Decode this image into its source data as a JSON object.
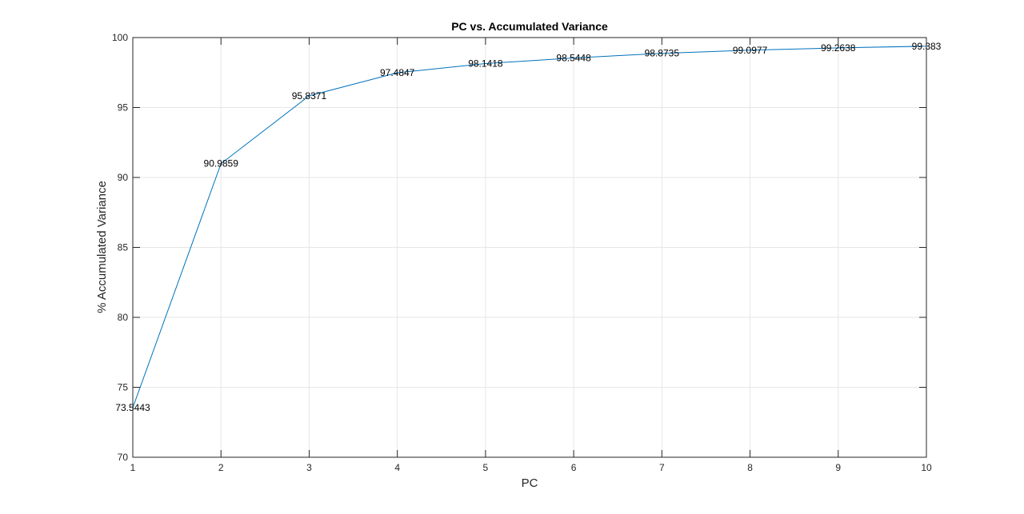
{
  "chart_data": {
    "type": "line",
    "title": "PC vs. Accumulated Variance",
    "xlabel": "PC",
    "ylabel": "% Accumulated Variance",
    "x": [
      1,
      2,
      3,
      4,
      5,
      6,
      7,
      8,
      9,
      10
    ],
    "series": [
      {
        "values": [
          73.5443,
          90.9859,
          95.8371,
          97.4847,
          98.1418,
          98.5448,
          98.8735,
          99.0977,
          99.2638,
          99.383
        ],
        "color": "#0072bd"
      }
    ],
    "data_labels": [
      "73.5443",
      "90.9859",
      "95.8371",
      "97.4847",
      "98.1418",
      "98.5448",
      "98.8735",
      "99.0977",
      "99.2638",
      "99.383"
    ],
    "xlim": [
      1,
      10
    ],
    "ylim": [
      70,
      100
    ],
    "xticks": [
      1,
      2,
      3,
      4,
      5,
      6,
      7,
      8,
      9,
      10
    ],
    "yticks": [
      70,
      75,
      80,
      85,
      90,
      95,
      100
    ],
    "grid": true,
    "box": true
  }
}
